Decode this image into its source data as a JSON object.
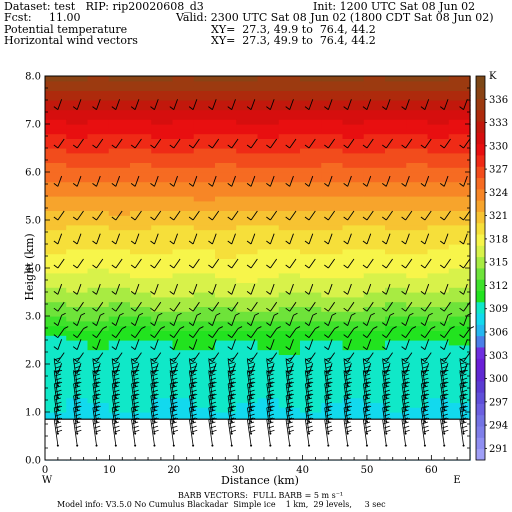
{
  "header": {
    "dataset": "Dataset: test   RIP: rip20020608_d3",
    "init": "Init: 1200 UTC Sat 08 Jun 02",
    "fcst": "Fcst:     11.00",
    "valid": "Valid: 2300 UTC Sat 08 Jun 02 (1800 CDT Sat 08 Jun 02)",
    "field1": "Potential temperature",
    "xy1": "XY=  27.3, 49.9 to  76.4, 44.2",
    "field2": "Horizontal wind vectors",
    "xy2": "XY=  27.3, 49.9 to  76.4, 44.2"
  },
  "footer": {
    "barb_note": "BARB VECTORS:  FULL BARB = 5 m s⁻¹",
    "model_info": "Model info: V3.5.0 No Cumulus Blackadar  Simple ice    1 km,  29 levels,     3 sec"
  },
  "chart_data": {
    "type": "heatmap",
    "xlabel": "Distance (km)",
    "ylabel": "Height (km)",
    "xlim": [
      0,
      66
    ],
    "ylim": [
      0,
      8
    ],
    "x_ticks": [
      0,
      10,
      20,
      30,
      40,
      50,
      60
    ],
    "y_ticks": [
      "0.0",
      "1.0",
      "2.0",
      "3.0",
      "4.0",
      "5.0",
      "6.0",
      "7.0",
      "8.0"
    ],
    "x_end_labels": {
      "left": "W",
      "right": "E"
    },
    "colorbar": {
      "unit": "K",
      "labels": [
        291,
        294,
        297,
        300,
        303,
        306,
        309,
        312,
        315,
        318,
        321,
        324,
        327,
        330,
        333,
        336
      ],
      "levels": [
        289.5,
        291,
        292.5,
        294,
        295.5,
        297,
        298.5,
        300,
        301.5,
        303,
        304.5,
        306,
        307.5,
        309,
        310.5,
        312,
        313.5,
        315,
        316.5,
        318,
        319.5,
        321,
        322.5,
        324,
        325.5,
        327,
        328.5,
        330,
        331.5,
        333,
        334.5,
        336,
        337.5,
        339
      ],
      "colors": [
        "#9f9ff7",
        "#8e8ef2",
        "#7e7ee9",
        "#7373e4",
        "#6b5fe0",
        "#5f4fd9",
        "#5a3cd2",
        "#5f2ad2",
        "#6a1fd7",
        "#6e2fdf",
        "#4a7fe8",
        "#25b7f0",
        "#12d9ee",
        "#10e8c8",
        "#22e31f",
        "#3ee22b",
        "#6ee33a",
        "#a8eb42",
        "#d8f24a",
        "#f7f54a",
        "#f6df3a",
        "#f7c332",
        "#f7a42c",
        "#f78626",
        "#f66b22",
        "#f24c1c",
        "#ef2a16",
        "#e80f10",
        "#d60e0e",
        "#c2180c",
        "#ae2a0c",
        "#9c3a10",
        "#8a4314",
        "#7d4717"
      ]
    },
    "theta_profile": [
      [
        0.0,
        306.5
      ],
      [
        0.8,
        308.5
      ],
      [
        1.5,
        309.5
      ],
      [
        2.5,
        310.3
      ],
      [
        2.8,
        312.0
      ],
      [
        3.0,
        313.5
      ],
      [
        3.5,
        316.0
      ],
      [
        4.0,
        318.2
      ],
      [
        5.0,
        321.5
      ],
      [
        6.0,
        326.5
      ],
      [
        7.0,
        331.0
      ],
      [
        8.0,
        338.0
      ]
    ],
    "terrain_height_km": 0.85,
    "wind_barb_levels_km": [
      0.3,
      0.55,
      0.8,
      1.05,
      1.3,
      1.55,
      1.8,
      2.05,
      2.3,
      2.55,
      2.8,
      3.1,
      3.45,
      4.0,
      4.5,
      5.0,
      5.7,
      6.5,
      7.3
    ],
    "wind_barb_columns_km": [
      2,
      5,
      8,
      11,
      14,
      17,
      20,
      23,
      26,
      29,
      32,
      35,
      38,
      41,
      44,
      47,
      50,
      53,
      56,
      59,
      62,
      65
    ]
  }
}
